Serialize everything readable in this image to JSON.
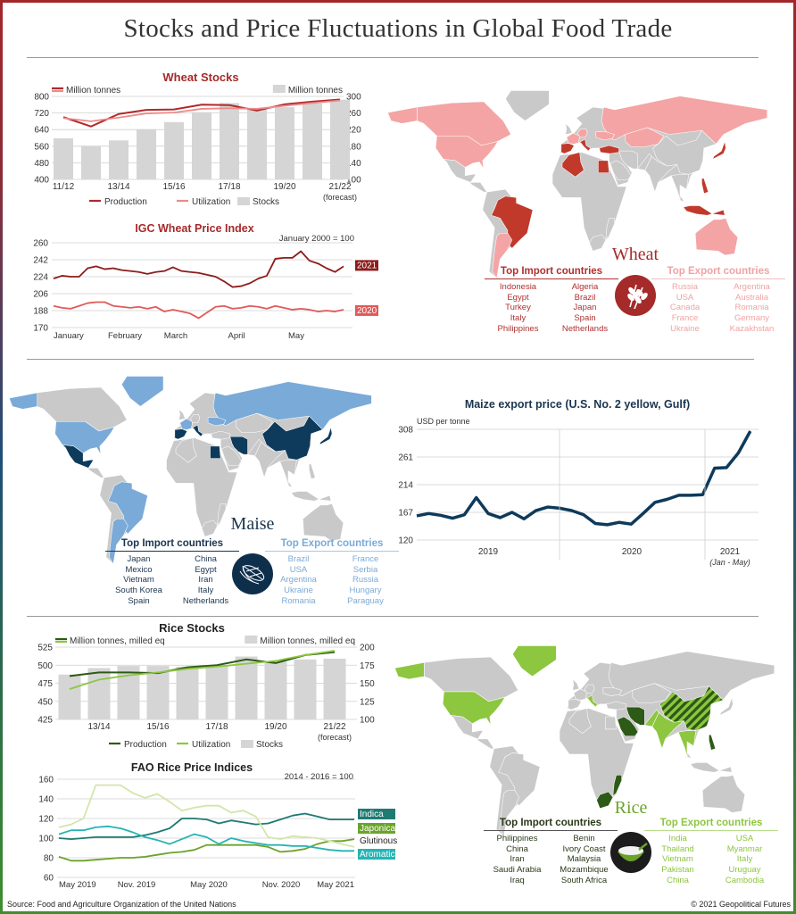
{
  "title": "Stocks and Price Fluctuations in Global Food Trade",
  "chart_data": [
    {
      "type": "bar+line",
      "title": "Wheat Stocks",
      "title_color": "#a52a2a",
      "left_unit": "Million tonnes",
      "right_unit": "Million tonnes",
      "categories": [
        "11/12",
        "12/13",
        "13/14",
        "14/15",
        "15/16",
        "16/17",
        "17/18",
        "18/19",
        "19/20",
        "20/21",
        "21/22"
      ],
      "tick_labels": [
        "11/12",
        "13/14",
        "15/16",
        "17/18",
        "19/20",
        "21/22"
      ],
      "forecast_note": "(forecast)",
      "left_ylim": [
        400,
        800
      ],
      "left_ticks": [
        "400",
        "480",
        "560",
        "640",
        "720",
        "800"
      ],
      "right_ylim": [
        100,
        300
      ],
      "right_ticks": [
        "100",
        "140",
        "180",
        "220",
        "260",
        "300"
      ],
      "grid": true,
      "legend_position": "bottom",
      "series": [
        {
          "name": "Production",
          "type": "line",
          "axis": "left",
          "color": "#b02a2a",
          "values": [
            700,
            655,
            715,
            735,
            737,
            760,
            758,
            732,
            762,
            775,
            785
          ]
        },
        {
          "name": "Utilization",
          "type": "line",
          "axis": "left",
          "color": "#ec8a8a",
          "values": [
            695,
            680,
            698,
            718,
            722,
            740,
            743,
            740,
            755,
            768,
            780
          ]
        },
        {
          "name": "Stocks",
          "type": "bar",
          "axis": "right",
          "color": "#d5d5d5",
          "values": [
            199,
            181,
            194,
            221,
            238,
            262,
            284,
            270,
            274,
            283,
            292
          ]
        }
      ]
    },
    {
      "type": "line",
      "title": "IGC Wheat Price Index",
      "title_color": "#a52a2a",
      "note": "January 2000 = 100",
      "ylim": [
        170,
        260
      ],
      "y_ticks": [
        "170",
        "188",
        "206",
        "224",
        "242",
        "260"
      ],
      "x_labels": [
        "January",
        "February",
        "March",
        "April",
        "May"
      ],
      "grid": true,
      "series": [
        {
          "name": "2021",
          "color": "#8e1b1b",
          "values": [
            222,
            225,
            224,
            224,
            233,
            235,
            232,
            233,
            231,
            230,
            229,
            227,
            229,
            230,
            234,
            230,
            229,
            228,
            226,
            224,
            219,
            213,
            214,
            217,
            222,
            225,
            243,
            244,
            244,
            251,
            241,
            238,
            233,
            229,
            235
          ]
        },
        {
          "name": "2020",
          "color": "#e05a5a",
          "values": [
            193,
            191,
            190,
            193,
            196,
            197,
            197,
            193,
            192,
            191,
            192,
            190,
            192,
            187,
            189,
            187,
            185,
            180,
            186,
            192,
            193,
            190,
            191,
            193,
            192,
            190,
            193,
            191,
            189,
            190,
            189,
            187,
            188,
            187,
            189
          ]
        }
      ]
    },
    {
      "type": "line",
      "title": "Maize export price (U.S. No. 2 yellow, Gulf)",
      "title_color": "#1a3550",
      "ylabel": "USD per tonne",
      "ylim": [
        120,
        308
      ],
      "y_ticks": [
        "120",
        "167",
        "214",
        "261",
        "308"
      ],
      "period_labels": [
        "2019",
        "2020",
        "2021"
      ],
      "period_note": "(Jan - May)",
      "x": [
        "2019-01",
        "2019-02",
        "2019-03",
        "2019-04",
        "2019-05",
        "2019-06",
        "2019-07",
        "2019-08",
        "2019-09",
        "2019-10",
        "2019-11",
        "2019-12",
        "2020-01",
        "2020-02",
        "2020-03",
        "2020-04",
        "2020-05",
        "2020-06",
        "2020-07",
        "2020-08",
        "2020-09",
        "2020-10",
        "2020-11",
        "2020-12",
        "2021-01",
        "2021-02",
        "2021-03",
        "2021-04",
        "2021-05"
      ],
      "grid": true,
      "series": [
        {
          "color": "#0e3a5b",
          "values": [
            161,
            165,
            162,
            157,
            163,
            192,
            165,
            158,
            167,
            156,
            170,
            176,
            174,
            170,
            163,
            148,
            146,
            150,
            147,
            165,
            184,
            189,
            196,
            196,
            197,
            242,
            243,
            268,
            305
          ]
        }
      ]
    },
    {
      "type": "bar+line",
      "title": "Rice Stocks",
      "title_color": "#222222",
      "left_unit": "Million tonnes, milled eq",
      "right_unit": "Million tonnes, milled eq",
      "categories": [
        "12/13",
        "13/14",
        "14/15",
        "15/16",
        "16/17",
        "17/18",
        "18/19",
        "19/20",
        "20/21",
        "21/22"
      ],
      "tick_labels": [
        "13/14",
        "15/16",
        "17/18",
        "19/20",
        "21/22"
      ],
      "forecast_note": "(forecast)",
      "left_ylim": [
        425,
        525
      ],
      "left_ticks": [
        "425",
        "450",
        "475",
        "500",
        "525"
      ],
      "right_ylim": [
        100,
        200
      ],
      "right_ticks": [
        "100",
        "125",
        "150",
        "175",
        "200"
      ],
      "grid": true,
      "legend_position": "bottom",
      "series": [
        {
          "name": "Production",
          "type": "line",
          "axis": "left",
          "color": "#2d5a16",
          "values": [
            485,
            490,
            490,
            489,
            497,
            500,
            508,
            503,
            514,
            518
          ]
        },
        {
          "name": "Utilization",
          "type": "line",
          "axis": "left",
          "color": "#8dc63f",
          "values": [
            467,
            480,
            486,
            490,
            495,
            498,
            502,
            506,
            514,
            520
          ]
        },
        {
          "name": "Stocks",
          "type": "bar",
          "axis": "right",
          "color": "#d5d5d5",
          "values": [
            162,
            171,
            174,
            174,
            173,
            175,
            187,
            180,
            183,
            184
          ]
        }
      ]
    },
    {
      "type": "line",
      "title": "FAO Rice Price Indices",
      "title_color": "#222222",
      "note": "2014 - 2016 = 100",
      "ylim": [
        60,
        160
      ],
      "y_ticks": [
        "60",
        "80",
        "100",
        "120",
        "140",
        "160"
      ],
      "x_labels": [
        "May 2019",
        "Nov. 2019",
        "May 2020",
        "Nov. 2020",
        "May 2021"
      ],
      "grid": true,
      "series": [
        {
          "name": "Indica",
          "color": "#1f7a72",
          "values": [
            100,
            99,
            100,
            101,
            101,
            101,
            101,
            103,
            106,
            110,
            120,
            120,
            119,
            115,
            118,
            116,
            114,
            115,
            119,
            123,
            125,
            122,
            119,
            119,
            119
          ]
        },
        {
          "name": "Japonica",
          "color": "#6aa32a",
          "values": [
            81,
            77,
            77,
            78,
            79,
            80,
            80,
            81,
            83,
            85,
            86,
            88,
            93,
            93,
            93,
            93,
            93,
            91,
            86,
            87,
            89,
            94,
            97,
            97,
            99
          ]
        },
        {
          "name": "Glutinous",
          "color": "#d3e5ab",
          "values": [
            111,
            114,
            120,
            154,
            154,
            154,
            146,
            141,
            145,
            137,
            128,
            131,
            133,
            133,
            126,
            128,
            122,
            101,
            99,
            102,
            101,
            100,
            97,
            94,
            91
          ]
        },
        {
          "name": "Aromatic",
          "color": "#27b3b3",
          "values": [
            104,
            108,
            108,
            111,
            112,
            110,
            106,
            101,
            98,
            94,
            99,
            104,
            101,
            94,
            100,
            97,
            95,
            93,
            93,
            92,
            92,
            90,
            88,
            87,
            87
          ]
        }
      ]
    }
  ],
  "maps": {
    "wheat": {
      "name": "Wheat",
      "icon": "wheat-icon",
      "import_title": "Top Import countries",
      "export_title": "Top Export countries",
      "imports": [
        [
          "Indonesia",
          "Egypt",
          "Turkey",
          "Italy",
          "Philippines"
        ],
        [
          "Algeria",
          "Brazil",
          "Japan",
          "Spain",
          "Netherlands"
        ]
      ],
      "exports": [
        [
          "Russia",
          "USA",
          "Canada",
          "France",
          "Ukraine"
        ],
        [
          "Argentina",
          "Australia",
          "Romania",
          "Germany",
          "Kazakhstan"
        ]
      ],
      "import_color": "#c0392b",
      "export_color": "#f4a4a4",
      "name_color": "#a52a2a",
      "import_regions": [
        "brazil",
        "egypt",
        "algeria",
        "turkey",
        "italy",
        "spain",
        "japan",
        "indonesia",
        "philippines"
      ],
      "export_regions": [
        "russia",
        "usa",
        "alaska",
        "canada",
        "france",
        "ukraine",
        "argentina",
        "australia",
        "germany",
        "kazakhstan"
      ]
    },
    "maize": {
      "name": "Maise",
      "icon": "corn-icon",
      "import_title": "Top Import countries",
      "export_title": "Top Export countries",
      "imports": [
        [
          "Japan",
          "Mexico",
          "Vietnam",
          "South Korea",
          "Spain"
        ],
        [
          "China",
          "Egypt",
          "Iran",
          "Italy",
          "Netherlands"
        ]
      ],
      "exports": [
        [
          "Brazil",
          "USA",
          "Argentina",
          "Ukraine",
          "Romania"
        ],
        [
          "France",
          "Serbia",
          "Russia",
          "Hungary",
          "Paraguay"
        ]
      ],
      "import_color": "#0e3a5b",
      "export_color": "#7aaad8",
      "name_color": "#1a3550",
      "import_regions": [
        "japan",
        "mexico",
        "china",
        "egypt",
        "iran",
        "italy",
        "spain"
      ],
      "export_regions": [
        "brazil",
        "usa",
        "alaska",
        "argentina",
        "ukraine",
        "russia",
        "france",
        "greenland"
      ]
    },
    "rice": {
      "name": "Rice",
      "icon": "rice-bowl-icon",
      "import_title": "Top Import countries",
      "export_title": "Top Export countries",
      "imports": [
        [
          "Philippines",
          "China",
          "Iran",
          "Saudi Arabia",
          "Iraq"
        ],
        [
          "Benin",
          "Ivory Coast",
          "Malaysia",
          "Mozambique",
          "South Africa"
        ]
      ],
      "exports": [
        [
          "India",
          "Thailand",
          "Vietnam",
          "Pakistan",
          "China"
        ],
        [
          "USA",
          "Myanmar",
          "Italy",
          "Uruguay",
          "Cambodia"
        ]
      ],
      "import_color": "#2d5a16",
      "export_color": "#8dc63f",
      "name_color": "#6aa32a",
      "import_regions": [
        "china",
        "iran",
        "saudi",
        "southafrica",
        "mozambique",
        "philippines"
      ],
      "export_regions": [
        "china",
        "india",
        "pakistan",
        "seasia",
        "usa",
        "alaska",
        "italy",
        "greenland"
      ]
    }
  },
  "footer": {
    "source": "Source: Food and Agriculture Organization of the United Nations",
    "copyright": "© 2021 Geopolitical Futures"
  }
}
